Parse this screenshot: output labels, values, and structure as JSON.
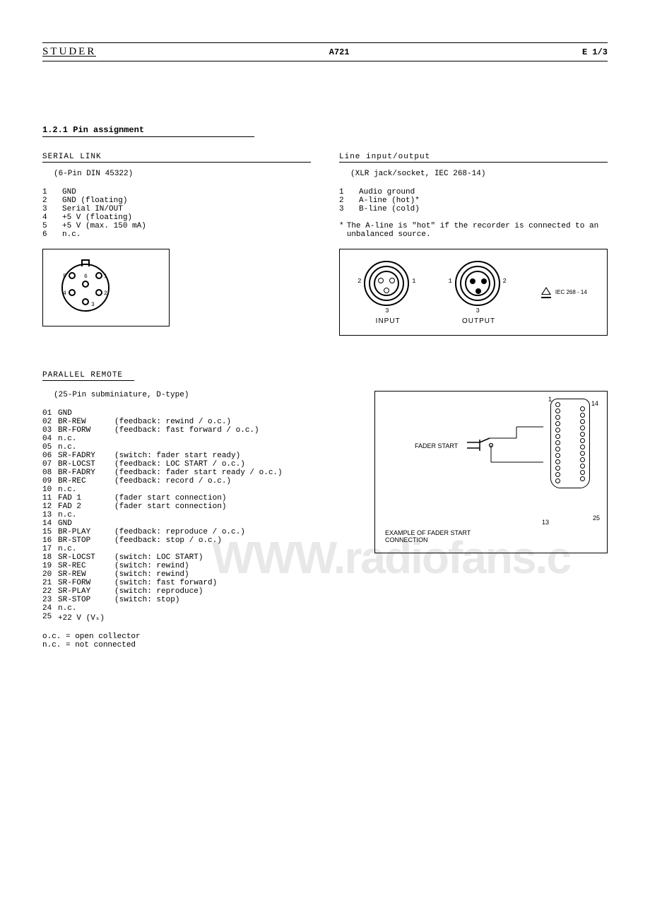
{
  "header": {
    "brand": "STUDER",
    "model": "A721",
    "pagenum": "E 1/3"
  },
  "section_title": "1.2.1  Pin assignment",
  "serial": {
    "title": "SERIAL LINK",
    "subtitle": "(6-Pin DIN 45322)",
    "pins": [
      {
        "n": "1",
        "label": "GND"
      },
      {
        "n": "2",
        "label": "GND (floating)"
      },
      {
        "n": "3",
        "label": "Serial IN/OUT"
      },
      {
        "n": "4",
        "label": "+5 V (floating)"
      },
      {
        "n": "5",
        "label": "+5 V (max. 150 mA)"
      },
      {
        "n": "6",
        "label": "n.c."
      }
    ],
    "din_labels": {
      "p1": "1",
      "p2": "2",
      "p3": "3",
      "p4": "4",
      "p5": "5",
      "p6": "6"
    }
  },
  "lineio": {
    "title": "Line input/output",
    "subtitle": "(XLR jack/socket, IEC 268-14)",
    "pins": [
      {
        "n": "1",
        "label": "Audio ground"
      },
      {
        "n": "2",
        "label": "A-line (hot)*"
      },
      {
        "n": "3",
        "label": "B-line (cold)"
      }
    ],
    "note_star": "*",
    "note": "The  A-line is \"hot\" if the recorder is connected to an unbalanced source.",
    "input_caption": "INPUT",
    "output_caption": "OUTPUT",
    "iec_text": "IEC 268 - 14",
    "nums": {
      "n1": "1",
      "n2": "2",
      "n3": "3"
    }
  },
  "parallel": {
    "title": "PARALLEL REMOTE",
    "subtitle": "(25-Pin subminiature, D-type)",
    "rows": [
      {
        "pn": "01",
        "sig": "GND",
        "desc": ""
      },
      {
        "pn": "02",
        "sig": "BR-REW",
        "desc": "(feedback: rewind / o.c.)"
      },
      {
        "pn": "03",
        "sig": "BR-FORW",
        "desc": "(feedback: fast forward / o.c.)"
      },
      {
        "pn": "04",
        "sig": "n.c.",
        "desc": ""
      },
      {
        "pn": "05",
        "sig": "n.c.",
        "desc": ""
      },
      {
        "pn": "06",
        "sig": "SR-FADRY",
        "desc": "(switch: fader start ready)"
      },
      {
        "pn": "07",
        "sig": "BR-LOCST",
        "desc": "(feedback: LOC START / o.c.)"
      },
      {
        "pn": "08",
        "sig": "BR-FADRY",
        "desc": "(feedback: fader start ready / o.c.)"
      },
      {
        "pn": "09",
        "sig": "BR-REC",
        "desc": "(feedback: record / o.c.)"
      },
      {
        "pn": "10",
        "sig": "n.c.",
        "desc": ""
      },
      {
        "pn": "11",
        "sig": "FAD 1",
        "desc": "(fader start connection)"
      },
      {
        "pn": "12",
        "sig": "FAD 2",
        "desc": "(fader start connection)"
      },
      {
        "pn": "13",
        "sig": "n.c.",
        "desc": ""
      },
      {
        "pn": "14",
        "sig": "GND",
        "desc": ""
      },
      {
        "pn": "15",
        "sig": "BR-PLAY",
        "desc": "(feedback: reproduce / o.c.)"
      },
      {
        "pn": "16",
        "sig": "BR-STOP",
        "desc": "(feedback: stop / o.c.)"
      },
      {
        "pn": "17",
        "sig": "n.c.",
        "desc": ""
      },
      {
        "pn": "18",
        "sig": "SR-LOCST",
        "desc": "(switch: LOC START)"
      },
      {
        "pn": "19",
        "sig": "SR-REC",
        "desc": "(switch: rewind)"
      },
      {
        "pn": "20",
        "sig": "SR-REW",
        "desc": "(switch: rewind)"
      },
      {
        "pn": "21",
        "sig": "SR-FORW",
        "desc": "(switch: fast forward)"
      },
      {
        "pn": "22",
        "sig": "SR-PLAY",
        "desc": "(switch: reproduce)"
      },
      {
        "pn": "23",
        "sig": "SR-STOP",
        "desc": "(switch: stop)"
      },
      {
        "pn": "24",
        "sig": "n.c.",
        "desc": ""
      },
      {
        "pn": "25",
        "sig": "+22 V (Vₛ)",
        "desc": ""
      }
    ],
    "legend": {
      "oc": "o.c. = open collector",
      "nc": "n.c. = not connected"
    },
    "dsub": {
      "fader_label": "FADER START",
      "caption1": "EXAMPLE OF FADER START",
      "caption2": "CONNECTION",
      "n1": "1",
      "n13": "13",
      "n14": "14",
      "n25": "25"
    }
  },
  "watermark": "WWW.radiofans.c"
}
